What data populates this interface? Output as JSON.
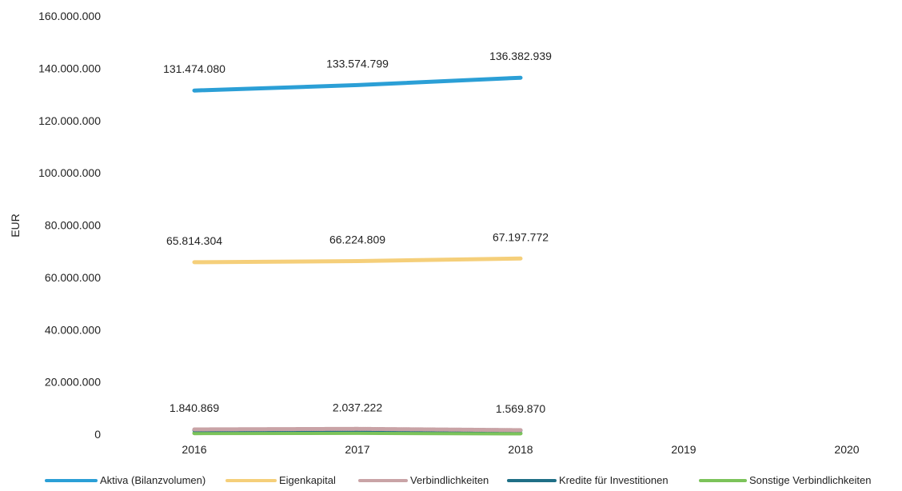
{
  "chart_data": {
    "type": "line",
    "title": "",
    "xlabel": "",
    "ylabel": "EUR",
    "categories": [
      "2016",
      "2017",
      "2018",
      "2019",
      "2020"
    ],
    "ylim": [
      0,
      160000000
    ],
    "y_ticks": [
      0,
      20000000,
      40000000,
      60000000,
      80000000,
      100000000,
      120000000,
      140000000,
      160000000
    ],
    "y_tick_labels": [
      "0",
      "20.000.000",
      "40.000.000",
      "60.000.000",
      "80.000.000",
      "100.000.000",
      "120.000.000",
      "140.000.000",
      "160.000.000"
    ],
    "grid": false,
    "legend_position": "bottom",
    "series": [
      {
        "name": "Aktiva (Bilanzvolumen)",
        "color": "#2b9fd6",
        "style": "solid",
        "values": [
          131474080,
          133574799,
          136382939,
          null,
          null
        ],
        "labels": [
          "131.474.080",
          "133.574.799",
          "136.382.939",
          null,
          null
        ]
      },
      {
        "name": "Eigenkapital",
        "color": "#f5cf7a",
        "style": "solid",
        "values": [
          65814304,
          66224809,
          67197772,
          null,
          null
        ],
        "labels": [
          "65.814.304",
          "66.224.809",
          "67.197.772",
          null,
          null
        ]
      },
      {
        "name": "Verbindlichkeiten",
        "color": "#c9a3a6",
        "style": "hatched",
        "values": [
          1840869,
          2037222,
          1569870,
          null,
          null
        ],
        "labels": [
          "1.840.869",
          "2.037.222",
          "1.569.870",
          null,
          null
        ]
      },
      {
        "name": "Kredite für Investitionen",
        "color": "#1f6f86",
        "style": "solid",
        "values": [
          1600000,
          1700000,
          1500000,
          null,
          null
        ],
        "labels": [
          null,
          null,
          null,
          null,
          null
        ]
      },
      {
        "name": "Sonstige Verbindlichkeiten",
        "color": "#7cc35a",
        "style": "solid",
        "values": [
          400000,
          500000,
          300000,
          null,
          null
        ],
        "labels": [
          null,
          null,
          null,
          null,
          null
        ]
      }
    ]
  }
}
